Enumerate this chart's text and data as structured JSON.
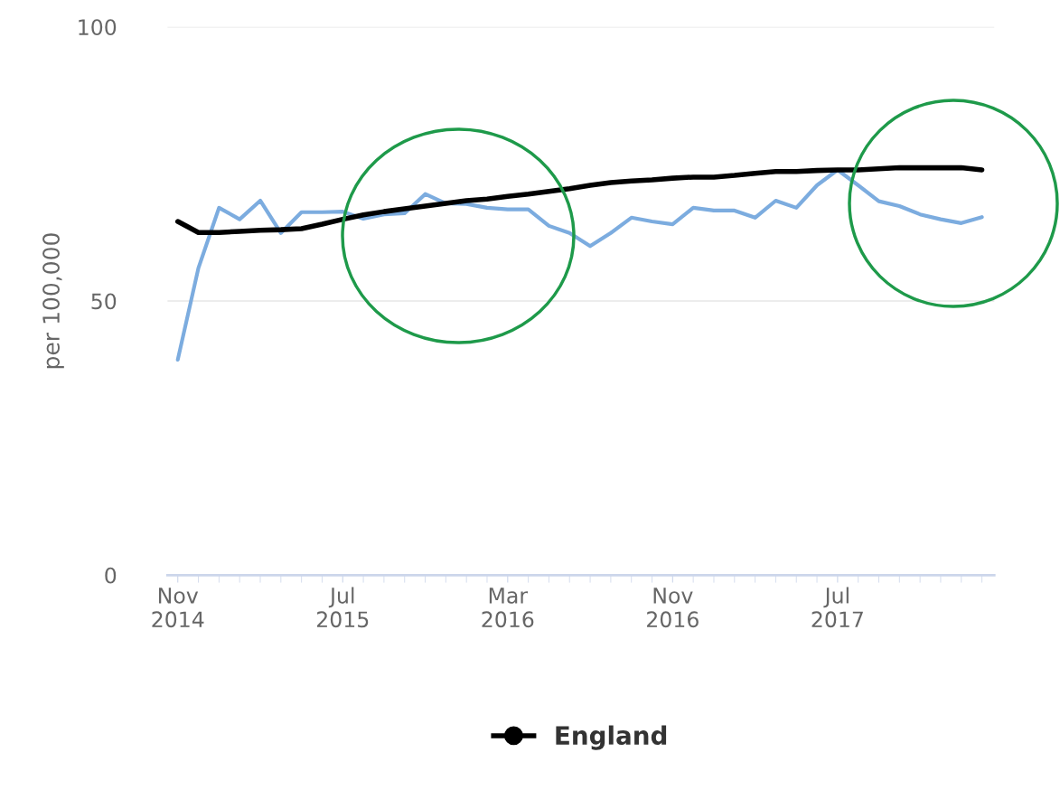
{
  "chart_data": {
    "type": "line",
    "ylabel": "per 100,000",
    "categories": [
      "Nov\n2014",
      null,
      null,
      null,
      null,
      null,
      null,
      null,
      "Jul\n2015",
      null,
      null,
      null,
      null,
      null,
      null,
      null,
      "Mar\n2016",
      null,
      null,
      null,
      null,
      null,
      null,
      null,
      "Nov\n2016",
      null,
      null,
      null,
      null,
      null,
      null,
      null,
      "Jul\n2017",
      null,
      null,
      null,
      null,
      null,
      null,
      null
    ],
    "series": [
      {
        "color": "#7cacdf",
        "values": [
          39.3,
          56,
          67,
          64.9,
          68.3,
          62.4,
          66.2,
          66.2,
          66.3,
          65,
          65.8,
          66,
          69.5,
          67.8,
          67.7,
          67,
          66.7,
          66.7,
          63.7,
          62.4,
          60,
          62.4,
          65.2,
          64.5,
          64,
          67,
          66.5,
          66.5,
          65.2,
          68.3,
          67,
          71.1,
          73.9,
          71.1,
          68.2,
          67.3,
          65.8,
          64.9,
          64.2,
          65.3
        ]
      },
      {
        "name": "England",
        "color": "#000000",
        "values": [
          64.5,
          62.5,
          62.5,
          62.7,
          62.9,
          63,
          63.2,
          64,
          64.9,
          65.7,
          66.3,
          66.8,
          67.3,
          67.8,
          68.3,
          68.6,
          69.1,
          69.5,
          70,
          70.5,
          71.1,
          71.6,
          71.9,
          72.1,
          72.4,
          72.6,
          72.6,
          72.9,
          73.3,
          73.6,
          73.6,
          73.8,
          73.9,
          73.9,
          74.1,
          74.3,
          74.3,
          74.3,
          74.3,
          73.9
        ]
      }
    ],
    "ylim": [
      0,
      100
    ],
    "yticks": [
      0,
      50,
      100
    ],
    "grid": "y",
    "legend": "bottom"
  }
}
